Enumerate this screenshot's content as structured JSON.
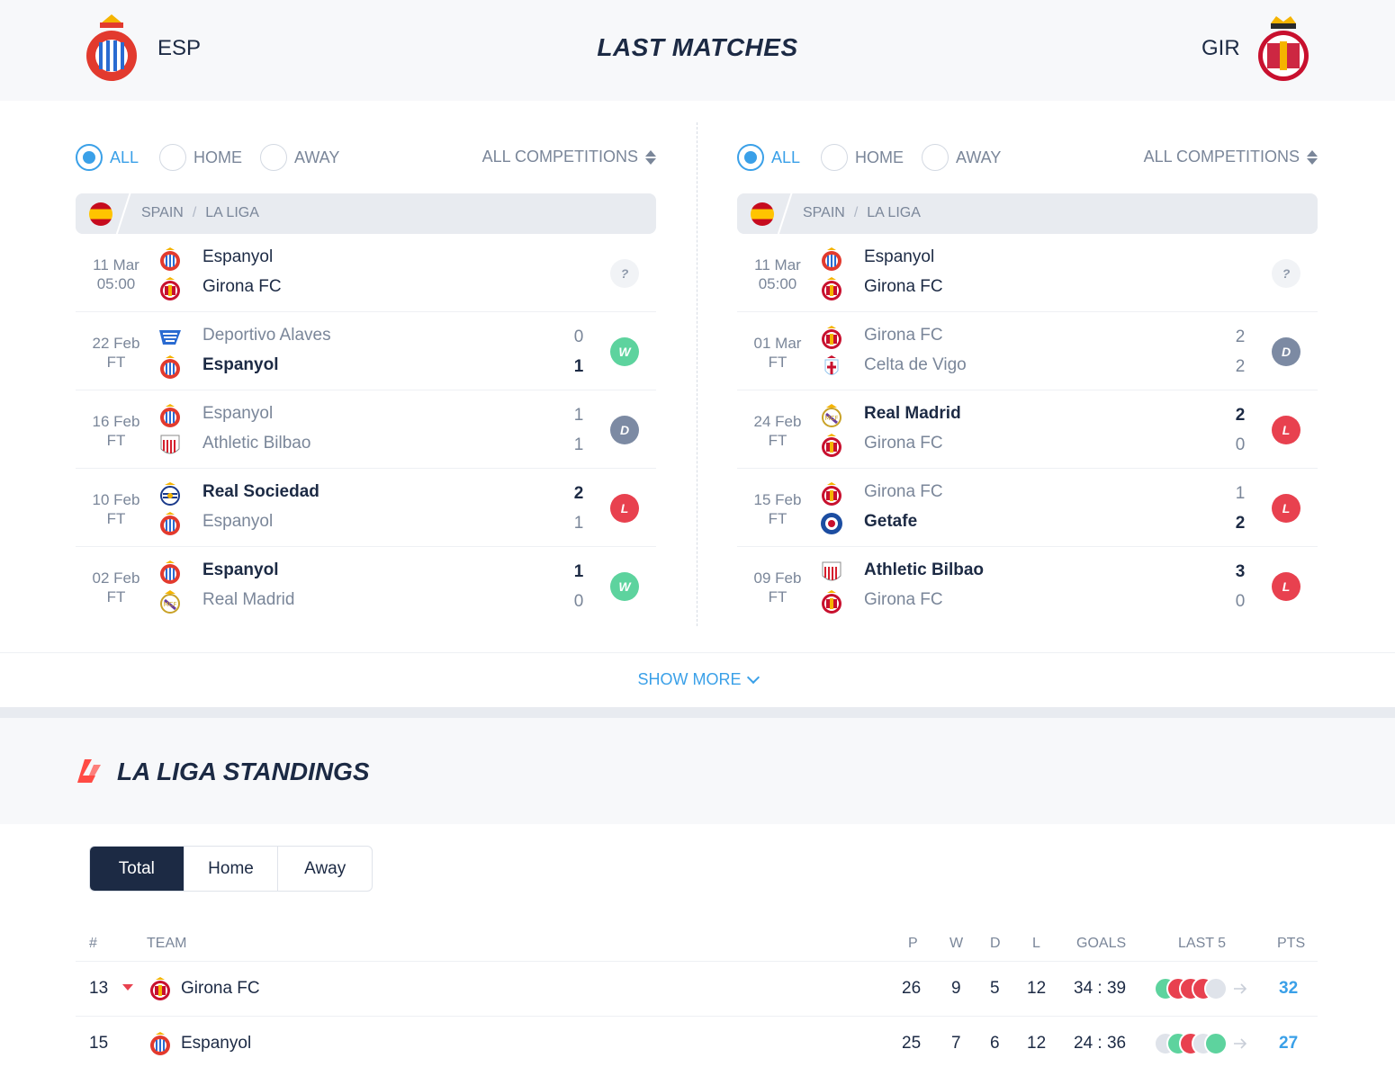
{
  "header": {
    "home_abbr": "ESP",
    "away_abbr": "GIR",
    "title": "LAST MATCHES"
  },
  "filters": {
    "all": "ALL",
    "home": "HOME",
    "away": "AWAY",
    "competitions": "ALL COMPETITIONS"
  },
  "league": {
    "country": "SPAIN",
    "name": "LA LIGA"
  },
  "left_matches": [
    {
      "date": "11 Mar",
      "time": "05:00",
      "team1": "Espanyol",
      "team2": "Girona FC",
      "logo1": "espanyol",
      "logo2": "girona",
      "score1": "",
      "score2": "",
      "result": "?",
      "winner": 0,
      "upcoming": true
    },
    {
      "date": "22 Feb",
      "time": "FT",
      "team1": "Deportivo Alaves",
      "team2": "Espanyol",
      "logo1": "alaves",
      "logo2": "espanyol",
      "score1": "0",
      "score2": "1",
      "result": "W",
      "winner": 2
    },
    {
      "date": "16 Feb",
      "time": "FT",
      "team1": "Espanyol",
      "team2": "Athletic Bilbao",
      "logo1": "espanyol",
      "logo2": "athletic",
      "score1": "1",
      "score2": "1",
      "result": "D",
      "winner": 0
    },
    {
      "date": "10 Feb",
      "time": "FT",
      "team1": "Real Sociedad",
      "team2": "Espanyol",
      "logo1": "sociedad",
      "logo2": "espanyol",
      "score1": "2",
      "score2": "1",
      "result": "L",
      "winner": 1
    },
    {
      "date": "02 Feb",
      "time": "FT",
      "team1": "Espanyol",
      "team2": "Real Madrid",
      "logo1": "espanyol",
      "logo2": "madrid",
      "score1": "1",
      "score2": "0",
      "result": "W",
      "winner": 1
    }
  ],
  "right_matches": [
    {
      "date": "11 Mar",
      "time": "05:00",
      "team1": "Espanyol",
      "team2": "Girona FC",
      "logo1": "espanyol",
      "logo2": "girona",
      "score1": "",
      "score2": "",
      "result": "?",
      "winner": 0,
      "upcoming": true
    },
    {
      "date": "01 Mar",
      "time": "FT",
      "team1": "Girona FC",
      "team2": "Celta de Vigo",
      "logo1": "girona",
      "logo2": "celta",
      "score1": "2",
      "score2": "2",
      "result": "D",
      "winner": 0
    },
    {
      "date": "24 Feb",
      "time": "FT",
      "team1": "Real Madrid",
      "team2": "Girona FC",
      "logo1": "madrid",
      "logo2": "girona",
      "score1": "2",
      "score2": "0",
      "result": "L",
      "winner": 1
    },
    {
      "date": "15 Feb",
      "time": "FT",
      "team1": "Girona FC",
      "team2": "Getafe",
      "logo1": "girona",
      "logo2": "getafe",
      "score1": "1",
      "score2": "2",
      "result": "L",
      "winner": 2
    },
    {
      "date": "09 Feb",
      "time": "FT",
      "team1": "Athletic Bilbao",
      "team2": "Girona FC",
      "logo1": "athletic",
      "logo2": "girona",
      "score1": "3",
      "score2": "0",
      "result": "L",
      "winner": 1
    }
  ],
  "show_more": "SHOW MORE",
  "standings": {
    "title": "LA LIGA STANDINGS",
    "tabs": [
      "Total",
      "Home",
      "Away"
    ],
    "active_tab": 0,
    "columns": {
      "pos": "#",
      "team": "TEAM",
      "p": "P",
      "w": "W",
      "d": "D",
      "l": "L",
      "goals": "GOALS",
      "last5": "LAST 5",
      "pts": "PTS"
    },
    "rows": [
      {
        "pos": "13",
        "trend": "down",
        "team": "Girona FC",
        "logo": "girona",
        "p": "26",
        "w": "9",
        "d": "5",
        "l": "12",
        "goals": "34 : 39",
        "last5": [
          "W",
          "L",
          "L",
          "L",
          "D"
        ],
        "pts": "32"
      },
      {
        "pos": "15",
        "trend": "",
        "team": "Espanyol",
        "logo": "espanyol",
        "p": "25",
        "w": "7",
        "d": "6",
        "l": "12",
        "goals": "24 : 36",
        "last5": [
          "D",
          "W",
          "L",
          "D",
          "W"
        ],
        "pts": "27"
      }
    ]
  },
  "colors": {
    "accent": "#3aa0e8",
    "navy": "#1c2a44",
    "win": "#5dd39e",
    "draw": "#7c8aa3",
    "loss": "#e8414f"
  }
}
